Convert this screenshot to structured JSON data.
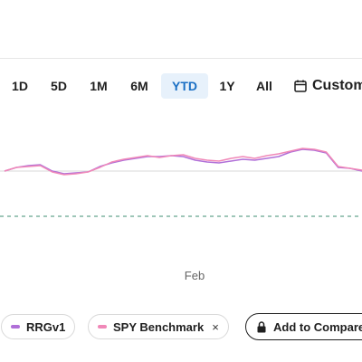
{
  "range_selector": {
    "options": [
      "1D",
      "5D",
      "1M",
      "6M",
      "YTD",
      "1Y",
      "All"
    ],
    "active": "YTD",
    "custom_label": "Custom",
    "custom_icon": "calendar-icon"
  },
  "chart_data": {
    "type": "line",
    "x_tick_labels": [
      "Feb"
    ],
    "series": [
      {
        "name": "RRGv1",
        "color": "#b06fd8",
        "values": [
          0,
          2,
          3,
          3.5,
          0,
          -1.5,
          -1,
          -0.5,
          2.5,
          4.5,
          6,
          7,
          8,
          8,
          8.5,
          8,
          6,
          5,
          4.5,
          5.5,
          6.5,
          6,
          7,
          8,
          10.5,
          12,
          11.5,
          10,
          2,
          1.5,
          0
        ]
      },
      {
        "name": "SPY Benchmark",
        "color": "#f088b8",
        "values": [
          0,
          2,
          2.5,
          3,
          -0.5,
          -2,
          -1.5,
          -0.5,
          2,
          5,
          6.5,
          7.5,
          8.5,
          7.5,
          8.5,
          9,
          7,
          6,
          5.5,
          7,
          8,
          7,
          8.5,
          9.5,
          11,
          12.5,
          12,
          10.5,
          2.5,
          1.5,
          0.5
        ]
      }
    ],
    "baseline_color": "#7fb3a0"
  },
  "legend": {
    "items": [
      {
        "name": "RRGv1",
        "color": "#b06fd8",
        "removable": false
      },
      {
        "name": "SPY Benchmark",
        "color": "#f088b8",
        "removable": true,
        "remove_icon": "close-icon",
        "remove_glyph": "×"
      }
    ],
    "add_compare_label": "Add to Compare",
    "add_compare_icon": "lock-icon"
  }
}
